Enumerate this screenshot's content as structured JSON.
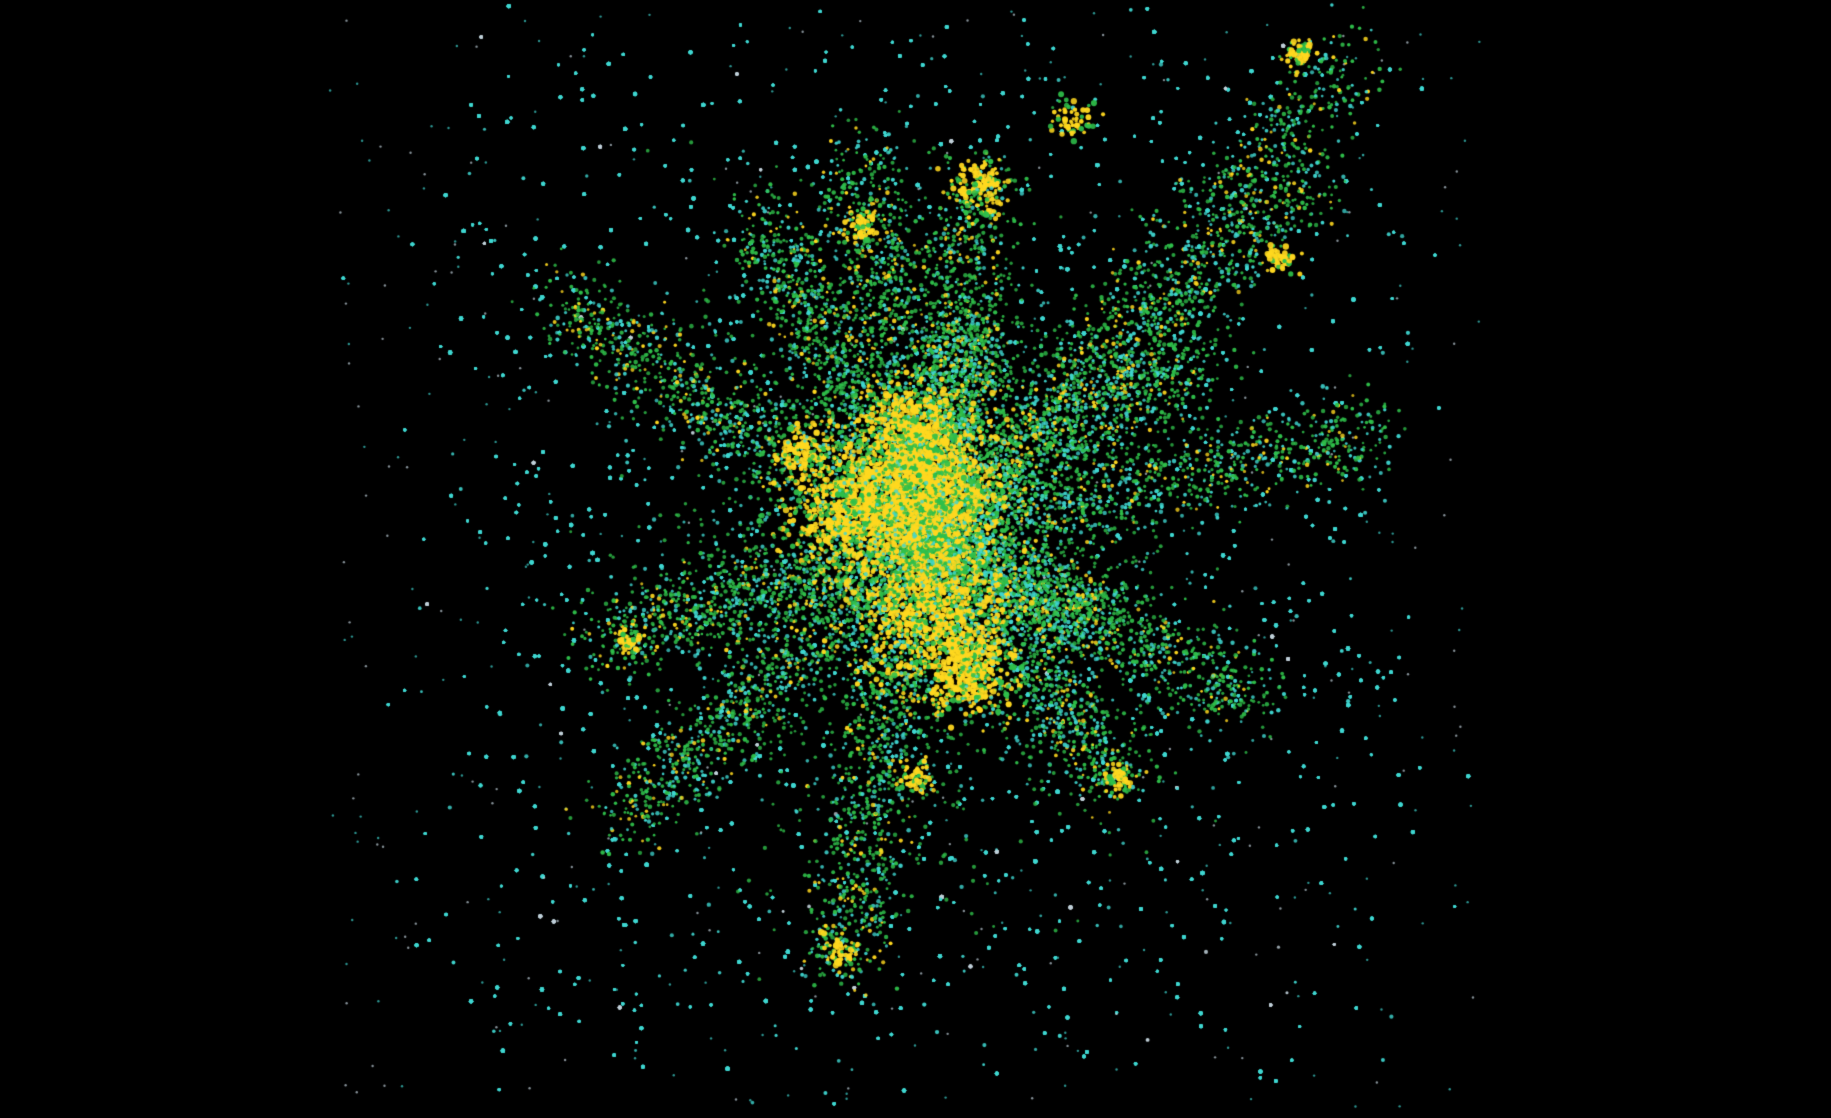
{
  "image": {
    "subject": "particle-field",
    "background_color": "#000000",
    "palette": {
      "sparse": "#3fd6d0",
      "medium": "#2fbf4a",
      "dense": "#ffd81f",
      "faint": "#bfcfd8"
    }
  }
}
